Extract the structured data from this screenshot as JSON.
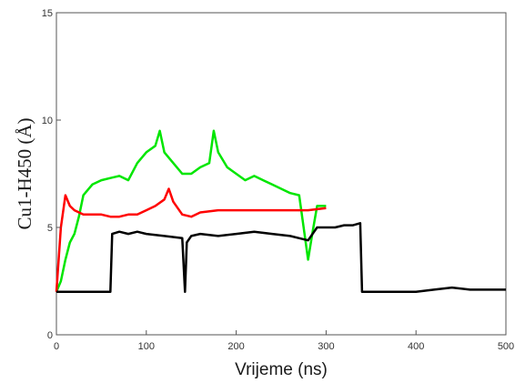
{
  "chart_data": {
    "type": "line",
    "xlabel": "Vrijeme (ns)",
    "ylabel": "Cu1-H450  (Å)",
    "xlim": [
      0,
      500
    ],
    "ylim": [
      0,
      15
    ],
    "xticks": [
      "0",
      "100",
      "200",
      "300",
      "400",
      "500"
    ],
    "yticks": [
      "0",
      "5",
      "10",
      "15"
    ],
    "grid": false,
    "series": [
      {
        "color": "#00e600",
        "x": [
          0,
          5,
          10,
          15,
          20,
          25,
          30,
          40,
          50,
          60,
          70,
          80,
          90,
          100,
          110,
          115,
          120,
          130,
          140,
          150,
          160,
          170,
          175,
          180,
          190,
          200,
          210,
          220,
          230,
          240,
          250,
          260,
          270,
          275,
          280,
          285,
          290,
          300
        ],
        "y": [
          2.0,
          2.5,
          3.5,
          4.3,
          4.7,
          5.5,
          6.5,
          7.0,
          7.2,
          7.3,
          7.4,
          7.2,
          8.0,
          8.5,
          8.8,
          9.5,
          8.5,
          8.0,
          7.5,
          7.5,
          7.8,
          8.0,
          9.5,
          8.5,
          7.8,
          7.5,
          7.2,
          7.4,
          7.2,
          7.0,
          6.8,
          6.6,
          6.5,
          5.0,
          3.5,
          4.8,
          6.0,
          6.0
        ]
      },
      {
        "color": "#ff0000",
        "x": [
          0,
          5,
          10,
          15,
          20,
          30,
          40,
          50,
          60,
          70,
          80,
          90,
          100,
          110,
          120,
          125,
          130,
          140,
          150,
          160,
          180,
          200,
          220,
          240,
          260,
          280,
          300
        ],
        "y": [
          2.0,
          5.0,
          6.5,
          6.0,
          5.8,
          5.6,
          5.6,
          5.6,
          5.5,
          5.5,
          5.6,
          5.6,
          5.8,
          6.0,
          6.3,
          6.8,
          6.2,
          5.6,
          5.5,
          5.7,
          5.8,
          5.8,
          5.8,
          5.8,
          5.8,
          5.8,
          5.9
        ]
      },
      {
        "color": "#000000",
        "x": [
          0,
          5,
          10,
          30,
          50,
          60,
          62,
          70,
          80,
          90,
          100,
          120,
          140,
          143,
          145,
          150,
          160,
          180,
          200,
          220,
          240,
          260,
          270,
          280,
          290,
          300,
          310,
          320,
          330,
          338,
          340,
          350,
          380,
          400,
          420,
          440,
          460,
          480,
          500
        ],
        "y": [
          2.0,
          2.0,
          2.0,
          2.0,
          2.0,
          2.0,
          4.7,
          4.8,
          4.7,
          4.8,
          4.7,
          4.6,
          4.5,
          2.0,
          4.3,
          4.6,
          4.7,
          4.6,
          4.7,
          4.8,
          4.7,
          4.6,
          4.5,
          4.4,
          5.0,
          5.0,
          5.0,
          5.1,
          5.1,
          5.2,
          2.0,
          2.0,
          2.0,
          2.0,
          2.1,
          2.2,
          2.1,
          2.1,
          2.1
        ]
      }
    ]
  }
}
